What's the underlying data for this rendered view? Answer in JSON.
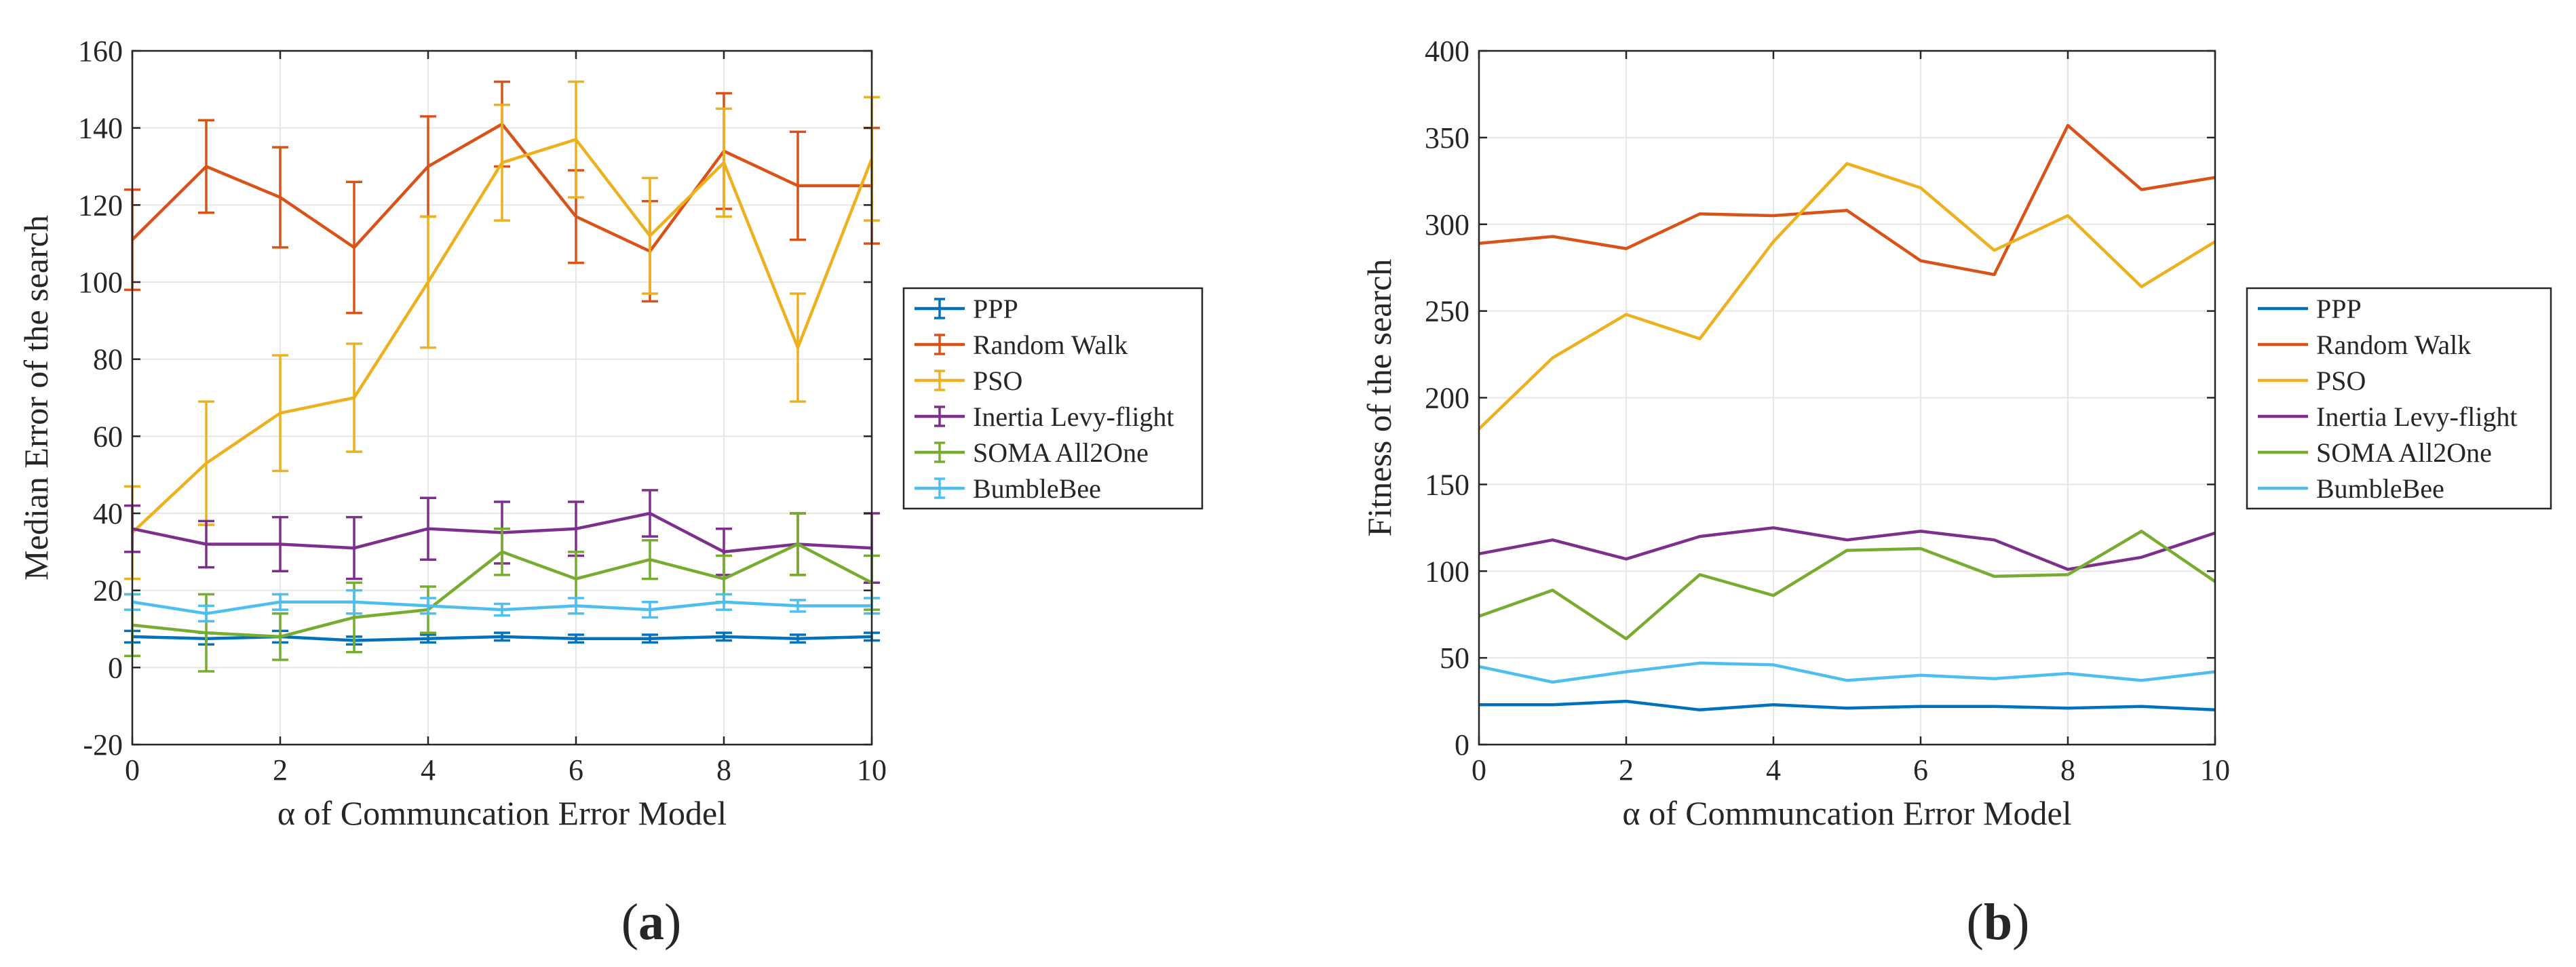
{
  "chart_data": [
    {
      "type": "line",
      "panel_label": "a",
      "title": "",
      "xlabel": "α of Communcation Error Model",
      "ylabel": "Median Error of the search",
      "x": [
        0,
        1,
        2,
        3,
        4,
        5,
        6,
        7,
        8,
        9,
        10
      ],
      "xlim": [
        0,
        10
      ],
      "ylim": [
        -20,
        160
      ],
      "xticks": [
        "0",
        "2",
        "4",
        "6",
        "8",
        "10"
      ],
      "yticks": [
        "-20",
        "0",
        "20",
        "40",
        "60",
        "80",
        "100",
        "120",
        "140",
        "160"
      ],
      "grid": true,
      "error_bars": true,
      "legend_position": "outside-right",
      "series": [
        {
          "name": "PPP",
          "color": "#0072BD",
          "values": [
            8,
            7.5,
            8,
            7,
            7.5,
            8,
            7.5,
            7.5,
            8,
            7.5,
            8
          ],
          "errors": [
            1.5,
            1.5,
            1.5,
            1,
            1,
            1,
            1,
            1,
            1,
            1,
            1
          ]
        },
        {
          "name": "Random Walk",
          "color": "#D95319",
          "values": [
            111,
            130,
            122,
            109,
            130,
            141,
            117,
            108,
            134,
            125,
            125
          ],
          "errors": [
            13,
            12,
            13,
            17,
            13,
            11,
            12,
            13,
            15,
            14,
            15
          ]
        },
        {
          "name": "PSO",
          "color": "#EDB120",
          "values": [
            35,
            53,
            66,
            70,
            100,
            131,
            137,
            112,
            131,
            83,
            132
          ],
          "errors": [
            12,
            16,
            15,
            14,
            17,
            15,
            15,
            15,
            14,
            14,
            16
          ]
        },
        {
          "name": "Inertia Levy-flight",
          "color": "#7E2F8E",
          "values": [
            36,
            32,
            32,
            31,
            36,
            35,
            36,
            40,
            30,
            32,
            31
          ],
          "errors": [
            6,
            6,
            7,
            8,
            8,
            8,
            7,
            6,
            6,
            8,
            9
          ]
        },
        {
          "name": "SOMA All2One",
          "color": "#77AC30",
          "values": [
            11,
            9,
            8,
            13,
            15,
            30,
            23,
            28,
            23,
            32,
            22
          ],
          "errors": [
            8,
            10,
            6,
            9,
            6,
            6,
            7,
            5,
            6,
            8,
            7
          ]
        },
        {
          "name": "BumbleBee",
          "color": "#4DBEEE",
          "values": [
            17,
            14,
            17,
            17,
            16,
            15,
            16,
            15,
            17,
            16,
            16
          ],
          "errors": [
            2,
            2,
            2,
            3,
            2,
            1.5,
            2,
            2,
            2,
            1.5,
            2
          ]
        }
      ]
    },
    {
      "type": "line",
      "panel_label": "b",
      "title": "",
      "xlabel": "α of Communcation Error Model",
      "ylabel": "Fitness of the search",
      "x": [
        0,
        1,
        2,
        3,
        4,
        5,
        6,
        7,
        8,
        9,
        10
      ],
      "xlim": [
        0,
        10
      ],
      "ylim": [
        0,
        400
      ],
      "xticks": [
        "0",
        "2",
        "4",
        "6",
        "8",
        "10"
      ],
      "yticks": [
        "0",
        "50",
        "100",
        "150",
        "200",
        "250",
        "300",
        "350",
        "400"
      ],
      "grid": true,
      "error_bars": false,
      "legend_position": "outside-right",
      "series": [
        {
          "name": "PPP",
          "color": "#0072BD",
          "values": [
            23,
            23,
            25,
            20,
            23,
            21,
            22,
            22,
            21,
            22,
            20
          ]
        },
        {
          "name": "Random Walk",
          "color": "#D95319",
          "values": [
            289,
            293,
            286,
            306,
            305,
            308,
            279,
            271,
            357,
            320,
            327
          ]
        },
        {
          "name": "PSO",
          "color": "#EDB120",
          "values": [
            182,
            223,
            248,
            234,
            290,
            335,
            321,
            285,
            305,
            264,
            290
          ]
        },
        {
          "name": "Inertia Levy-flight",
          "color": "#7E2F8E",
          "values": [
            110,
            118,
            107,
            120,
            125,
            118,
            123,
            118,
            101,
            108,
            122
          ]
        },
        {
          "name": "SOMA All2One",
          "color": "#77AC30",
          "values": [
            74,
            89,
            61,
            98,
            86,
            112,
            113,
            97,
            98,
            123,
            94
          ]
        },
        {
          "name": "BumbleBee",
          "color": "#4DBEEE",
          "values": [
            45,
            36,
            42,
            47,
            46,
            37,
            40,
            38,
            41,
            37,
            42
          ]
        }
      ]
    }
  ]
}
